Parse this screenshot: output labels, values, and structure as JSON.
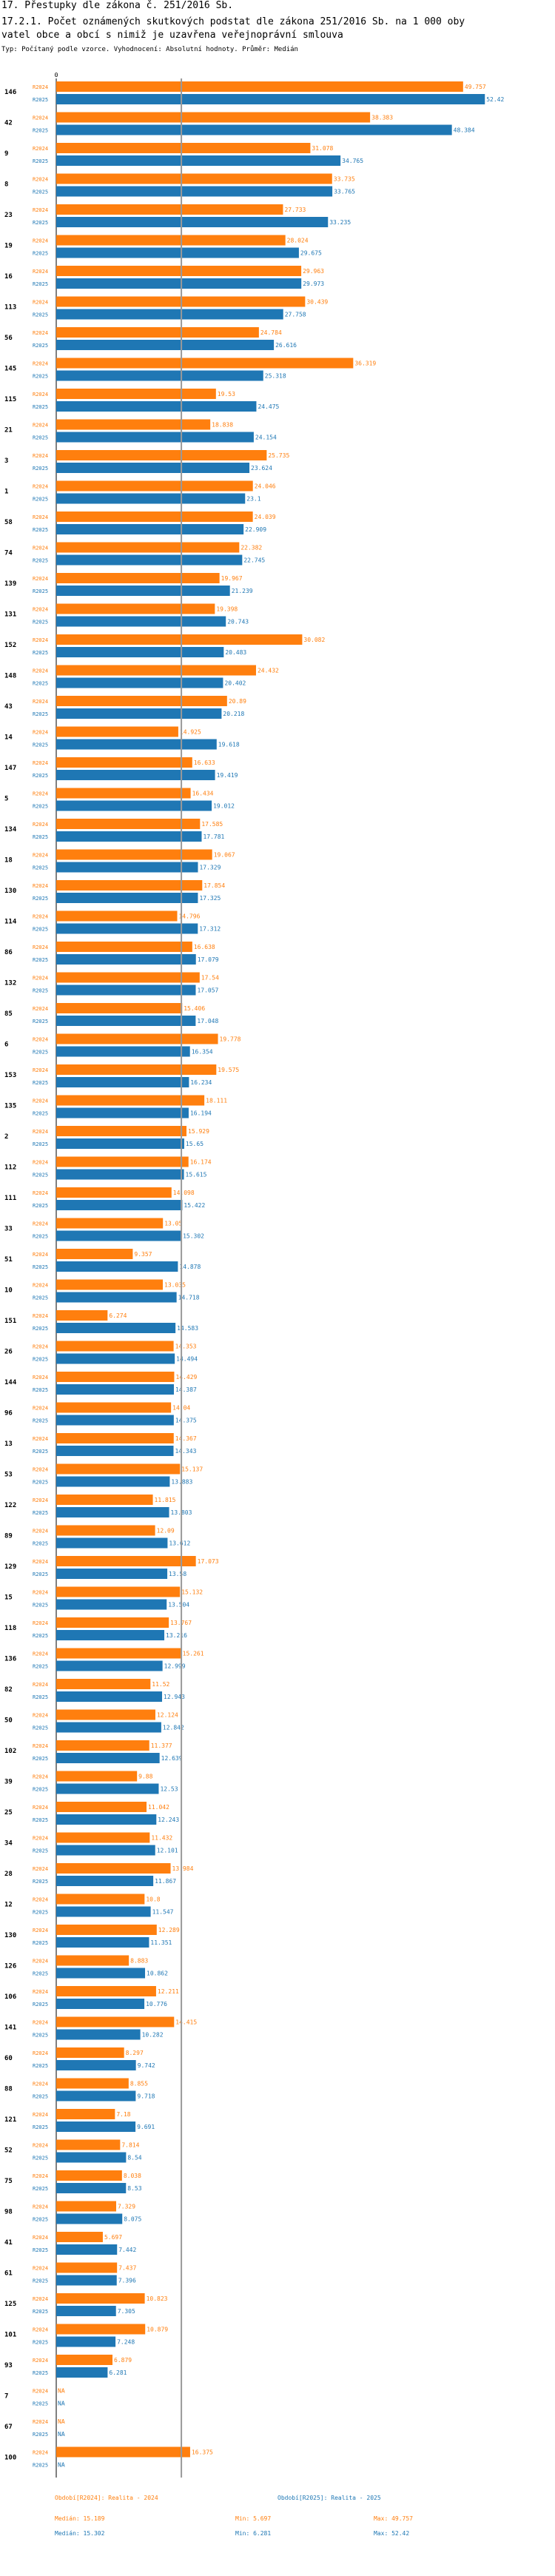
{
  "title": "17. Přestupky dle zákona č. 251/2016 Sb.",
  "subtitle_line1": "17.2.1. Počet oznámených skutkových podstat dle zákona 251/2016 Sb. na 1 000 oby",
  "subtitle_line2": "vatel obce a obcí s nimiž je uzavřena veřejnoprávní smlouva",
  "type_line": "Typ: Počítaný podle vzorce. Vyhodnocení: Absolutní hodnoty. Průměr: Medián",
  "chart_data": {
    "type": "bar",
    "orientation": "horizontal",
    "title": "17.2.1. Počet oznámených skutkových podstat dle zákona 251/2016 Sb. na 1 000 obyvatel obce a obcí s nimiž je uzavřena veřejnoprávní smlouva",
    "xlim": [
      0,
      58
    ],
    "axis_zero_label": "0",
    "series": [
      {
        "name": "R2024",
        "label": "Období[R2024]: Realita - 2024",
        "color": "#ff7f0e"
      },
      {
        "name": "R2025",
        "label": "Období[R2025]: Realita - 2025",
        "color": "#1f77b4"
      }
    ],
    "median": 15.302,
    "median_line_color": "#999999",
    "rows": [
      {
        "id": "146",
        "r2024": 49.757,
        "r2024_label": "49.757",
        "r2025": 52.42,
        "r2025_label": "52.42"
      },
      {
        "id": "42",
        "r2024": 38.383,
        "r2024_label": "38.383",
        "r2025": 48.384,
        "r2025_label": "48.384"
      },
      {
        "id": "9",
        "r2024": 31.078,
        "r2024_label": "31.078",
        "r2025": 34.765,
        "r2025_label": "34.765"
      },
      {
        "id": "8",
        "r2024": 33.735,
        "r2024_label": "33.735",
        "r2025": 33.765,
        "r2025_label": "33.765"
      },
      {
        "id": "23",
        "r2024": 27.733,
        "r2024_label": "27.733",
        "r2025": 33.235,
        "r2025_label": "33.235"
      },
      {
        "id": "19",
        "r2024": 28.024,
        "r2024_label": "28.024",
        "r2025": 29.675,
        "r2025_label": "29.675"
      },
      {
        "id": "16",
        "r2024": 29.963,
        "r2024_label": "29.963",
        "r2025": 29.973,
        "r2025_label": "29.973"
      },
      {
        "id": "113",
        "r2024": 30.439,
        "r2024_label": "30.439",
        "r2025": 27.758,
        "r2025_label": "27.758"
      },
      {
        "id": "56",
        "r2024": 24.784,
        "r2024_label": "24.784",
        "r2025": 26.616,
        "r2025_label": "26.616"
      },
      {
        "id": "145",
        "r2024": 36.319,
        "r2024_label": "36.319",
        "r2025": 25.318,
        "r2025_label": "25.318"
      },
      {
        "id": "115",
        "r2024": 19.53,
        "r2024_label": "19.53",
        "r2025": 24.475,
        "r2025_label": "24.475"
      },
      {
        "id": "21",
        "r2024": 18.838,
        "r2024_label": "18.838",
        "r2025": 24.154,
        "r2025_label": "24.154"
      },
      {
        "id": "3",
        "r2024": 25.735,
        "r2024_label": "25.735",
        "r2025": 23.624,
        "r2025_label": "23.624"
      },
      {
        "id": "1",
        "r2024": 24.046,
        "r2024_label": "24.046",
        "r2025": 23.1,
        "r2025_label": "23.1"
      },
      {
        "id": "58",
        "r2024": 24.039,
        "r2024_label": "24.039",
        "r2025": 22.909,
        "r2025_label": "22.909"
      },
      {
        "id": "74",
        "r2024": 22.382,
        "r2024_label": "22.382",
        "r2025": 22.745,
        "r2025_label": "22.745"
      },
      {
        "id": "139",
        "r2024": 19.967,
        "r2024_label": "19.967",
        "r2025": 21.239,
        "r2025_label": "21.239"
      },
      {
        "id": "131",
        "r2024": 19.398,
        "r2024_label": "19.398",
        "r2025": 20.743,
        "r2025_label": "20.743"
      },
      {
        "id": "152",
        "r2024": 30.082,
        "r2024_label": "30.082",
        "r2025": 20.483,
        "r2025_label": "20.483"
      },
      {
        "id": "148",
        "r2024": 24.432,
        "r2024_label": "24.432",
        "r2025": 20.402,
        "r2025_label": "20.402"
      },
      {
        "id": "43",
        "r2024": 20.89,
        "r2024_label": "20.89",
        "r2025": 20.218,
        "r2025_label": "20.218"
      },
      {
        "id": "14",
        "r2024": 14.925,
        "r2024_label": "14.925",
        "r2025": 19.618,
        "r2025_label": "19.618"
      },
      {
        "id": "147",
        "r2024": 16.633,
        "r2024_label": "16.633",
        "r2025": 19.419,
        "r2025_label": "19.419"
      },
      {
        "id": "5",
        "r2024": 16.434,
        "r2024_label": "16.434",
        "r2025": 19.012,
        "r2025_label": "19.012"
      },
      {
        "id": "134",
        "r2024": 17.585,
        "r2024_label": "17.585",
        "r2025": 17.781,
        "r2025_label": "17.781"
      },
      {
        "id": "18",
        "r2024": 19.067,
        "r2024_label": "19.067",
        "r2025": 17.329,
        "r2025_label": "17.329"
      },
      {
        "id": "130",
        "r2024": 17.854,
        "r2024_label": "17.854",
        "r2025": 17.325,
        "r2025_label": "17.325"
      },
      {
        "id": "114",
        "r2024": 14.796,
        "r2024_label": "14.796",
        "r2025": 17.312,
        "r2025_label": "17.312"
      },
      {
        "id": "86",
        "r2024": 16.638,
        "r2024_label": "16.638",
        "r2025": 17.079,
        "r2025_label": "17.079"
      },
      {
        "id": "132",
        "r2024": 17.54,
        "r2024_label": "17.54",
        "r2025": 17.057,
        "r2025_label": "17.057"
      },
      {
        "id": "85",
        "r2024": 15.406,
        "r2024_label": "15.406",
        "r2025": 17.048,
        "r2025_label": "17.048"
      },
      {
        "id": "6",
        "r2024": 19.778,
        "r2024_label": "19.778",
        "r2025": 16.354,
        "r2025_label": "16.354"
      },
      {
        "id": "153",
        "r2024": 19.575,
        "r2024_label": "19.575",
        "r2025": 16.234,
        "r2025_label": "16.234"
      },
      {
        "id": "135",
        "r2024": 18.111,
        "r2024_label": "18.111",
        "r2025": 16.194,
        "r2025_label": "16.194"
      },
      {
        "id": "2",
        "r2024": 15.929,
        "r2024_label": "15.929",
        "r2025": 15.65,
        "r2025_label": "15.65"
      },
      {
        "id": "112",
        "r2024": 16.174,
        "r2024_label": "16.174",
        "r2025": 15.615,
        "r2025_label": "15.615"
      },
      {
        "id": "111",
        "r2024": 14.098,
        "r2024_label": "14.098",
        "r2025": 15.422,
        "r2025_label": "15.422"
      },
      {
        "id": "33",
        "r2024": 13.05,
        "r2024_label": "13.05",
        "r2025": 15.302,
        "r2025_label": "15.302"
      },
      {
        "id": "51",
        "r2024": 9.357,
        "r2024_label": "9.357",
        "r2025": 14.878,
        "r2025_label": "14.878"
      },
      {
        "id": "10",
        "r2024": 13.035,
        "r2024_label": "13.035",
        "r2025": 14.718,
        "r2025_label": "14.718"
      },
      {
        "id": "151",
        "r2024": 6.274,
        "r2024_label": "6.274",
        "r2025": 14.583,
        "r2025_label": "14.583"
      },
      {
        "id": "26",
        "r2024": 14.353,
        "r2024_label": "14.353",
        "r2025": 14.494,
        "r2025_label": "14.494"
      },
      {
        "id": "144",
        "r2024": 14.429,
        "r2024_label": "14.429",
        "r2025": 14.387,
        "r2025_label": "14.387"
      },
      {
        "id": "96",
        "r2024": 14.04,
        "r2024_label": "14.04",
        "r2025": 14.375,
        "r2025_label": "14.375"
      },
      {
        "id": "13",
        "r2024": 14.367,
        "r2024_label": "14.367",
        "r2025": 14.343,
        "r2025_label": "14.343"
      },
      {
        "id": "53",
        "r2024": 15.137,
        "r2024_label": "15.137",
        "r2025": 13.883,
        "r2025_label": "13.883"
      },
      {
        "id": "122",
        "r2024": 11.815,
        "r2024_label": "11.815",
        "r2025": 13.803,
        "r2025_label": "13.803"
      },
      {
        "id": "89",
        "r2024": 12.09,
        "r2024_label": "12.09",
        "r2025": 13.612,
        "r2025_label": "13.612"
      },
      {
        "id": "129",
        "r2024": 17.073,
        "r2024_label": "17.073",
        "r2025": 13.58,
        "r2025_label": "13.58"
      },
      {
        "id": "15",
        "r2024": 15.132,
        "r2024_label": "15.132",
        "r2025": 13.504,
        "r2025_label": "13.504"
      },
      {
        "id": "118",
        "r2024": 13.767,
        "r2024_label": "13.767",
        "r2025": 13.216,
        "r2025_label": "13.216"
      },
      {
        "id": "136",
        "r2024": 15.261,
        "r2024_label": "15.261",
        "r2025": 12.999,
        "r2025_label": "12.999"
      },
      {
        "id": "82",
        "r2024": 11.52,
        "r2024_label": "11.52",
        "r2025": 12.943,
        "r2025_label": "12.943"
      },
      {
        "id": "50",
        "r2024": 12.124,
        "r2024_label": "12.124",
        "r2025": 12.842,
        "r2025_label": "12.842"
      },
      {
        "id": "102",
        "r2024": 11.377,
        "r2024_label": "11.377",
        "r2025": 12.639,
        "r2025_label": "12.639"
      },
      {
        "id": "39",
        "r2024": 9.88,
        "r2024_label": "9.88",
        "r2025": 12.53,
        "r2025_label": "12.53"
      },
      {
        "id": "25",
        "r2024": 11.042,
        "r2024_label": "11.042",
        "r2025": 12.243,
        "r2025_label": "12.243"
      },
      {
        "id": "34",
        "r2024": 11.432,
        "r2024_label": "11.432",
        "r2025": 12.101,
        "r2025_label": "12.101"
      },
      {
        "id": "28",
        "r2024": 13.984,
        "r2024_label": "13.984",
        "r2025": 11.867,
        "r2025_label": "11.867"
      },
      {
        "id": "12",
        "r2024": 10.8,
        "r2024_label": "10.8",
        "r2025": 11.547,
        "r2025_label": "11.547"
      },
      {
        "id": "130b",
        "label": "130",
        "r2024": 12.289,
        "r2024_label": "12.289",
        "r2025": 11.351,
        "r2025_label": "11.351"
      },
      {
        "id": "126",
        "r2024": 8.883,
        "r2024_label": "8.883",
        "r2025": 10.862,
        "r2025_label": "10.862"
      },
      {
        "id": "106",
        "r2024": 12.211,
        "r2024_label": "12.211",
        "r2025": 10.776,
        "r2025_label": "10.776"
      },
      {
        "id": "141",
        "r2024": 14.415,
        "r2024_label": "14.415",
        "r2025": 10.282,
        "r2025_label": "10.282"
      },
      {
        "id": "60",
        "r2024": 8.297,
        "r2024_label": "8.297",
        "r2025": 9.742,
        "r2025_label": "9.742"
      },
      {
        "id": "88",
        "r2024": 8.855,
        "r2024_label": "8.855",
        "r2025": 9.718,
        "r2025_label": "9.718"
      },
      {
        "id": "121",
        "r2024": 7.18,
        "r2024_label": "7.18",
        "r2025": 9.691,
        "r2025_label": "9.691"
      },
      {
        "id": "52",
        "r2024": 7.814,
        "r2024_label": "7.814",
        "r2025": 8.54,
        "r2025_label": "8.54"
      },
      {
        "id": "75",
        "r2024": 8.038,
        "r2024_label": "8.038",
        "r2025": 8.53,
        "r2025_label": "8.53"
      },
      {
        "id": "98",
        "r2024": 7.329,
        "r2024_label": "7.329",
        "r2025": 8.075,
        "r2025_label": "8.075"
      },
      {
        "id": "41",
        "r2024": 5.697,
        "r2024_label": "5.697",
        "r2025": 7.442,
        "r2025_label": "7.442"
      },
      {
        "id": "61",
        "r2024": 7.437,
        "r2024_label": "7.437",
        "r2025": 7.396,
        "r2025_label": "7.396"
      },
      {
        "id": "125",
        "r2024": 10.823,
        "r2024_label": "10.823",
        "r2025": 7.305,
        "r2025_label": "7.305"
      },
      {
        "id": "101",
        "r2024": 10.879,
        "r2024_label": "10.879",
        "r2025": 7.248,
        "r2025_label": "7.248"
      },
      {
        "id": "93",
        "r2024": 6.879,
        "r2024_label": "6.879",
        "r2025": 6.281,
        "r2025_label": "6.281"
      },
      {
        "id": "7",
        "r2024": null,
        "r2024_label": "NA",
        "r2025": null,
        "r2025_label": "NA"
      },
      {
        "id": "67",
        "r2024": null,
        "r2024_label": "NA",
        "r2025": null,
        "r2025_label": "NA"
      },
      {
        "id": "100",
        "r2024": 16.375,
        "r2024_label": "16.375",
        "r2025": null,
        "r2025_label": "NA"
      }
    ],
    "legend": {
      "r2024": {
        "title": "Období[R2024]: Realita - 2024",
        "median": "Medián: 15.189",
        "min": "Min: 5.697",
        "max": "Max: 49.757"
      },
      "r2025": {
        "title": "Období[R2025]: Realita - 2025",
        "median": "Medián: 15.302",
        "min": "Min: 6.281",
        "max": "Max: 52.42"
      }
    }
  }
}
